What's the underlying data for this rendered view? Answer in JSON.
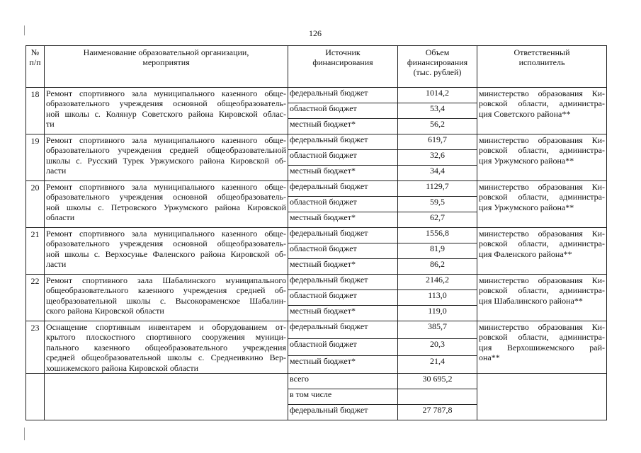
{
  "page_number": "126",
  "header": {
    "num": [
      "№",
      "п/п"
    ],
    "name": [
      "Наименование образовательной организации,",
      "мероприятия"
    ],
    "source": [
      "Источник",
      "финансирования"
    ],
    "volume": [
      "Объем",
      "финансирования",
      "(тыс. рублей)"
    ],
    "responsible": [
      "Ответственный",
      "исполнитель"
    ]
  },
  "rows": [
    {
      "num": "18",
      "name_lines": [
        "Ремонт спортивного зала муниципального казенного обще-",
        "образовательного учреждения основной общеобразователь-",
        "ной школы с. Колянур Советского района Кировской облас-",
        "ти"
      ],
      "funding": [
        {
          "source": "федеральный бюджет",
          "amount": "1014,2"
        },
        {
          "source": "областной бюджет",
          "amount": "53,4"
        },
        {
          "source": "местный бюджет*",
          "amount": "56,2"
        }
      ],
      "responsible_lines": [
        "министерство образования Ки-",
        "ровской области, администра-",
        "ция Советского района**"
      ]
    },
    {
      "num": "19",
      "name_lines": [
        "Ремонт спортивного зала муниципального казенного обще-",
        "образовательного учреждения средней общеобразовательной",
        "школы с. Русский Турек Уржумского района Кировской об-",
        "ласти"
      ],
      "funding": [
        {
          "source": "федеральный бюджет",
          "amount": "619,7"
        },
        {
          "source": "областной бюджет",
          "amount": "32,6"
        },
        {
          "source": "местный бюджет*",
          "amount": "34,4"
        }
      ],
      "responsible_lines": [
        "министерство образования Ки-",
        "ровской области, администра-",
        "ция Уржумского района**"
      ]
    },
    {
      "num": "20",
      "name_lines": [
        "Ремонт спортивного зала муниципального казенного обще-",
        "образовательного учреждения основной общеобразователь-",
        "ной школы с. Петровского Уржумского района Кировской",
        "области"
      ],
      "funding": [
        {
          "source": "федеральный бюджет",
          "amount": "1129,7"
        },
        {
          "source": "областной бюджет",
          "amount": "59,5"
        },
        {
          "source": "местный бюджет*",
          "amount": "62,7"
        }
      ],
      "responsible_lines": [
        "министерство образования Ки-",
        "ровской области, администра-",
        "ция Уржумского района**"
      ]
    },
    {
      "num": "21",
      "name_lines": [
        "Ремонт спортивного зала муниципального казенного обще-",
        "образовательного учреждения основной общеобразователь-",
        "ной школы с. Верхосунье Фаленского района Кировской об-",
        "ласти"
      ],
      "funding": [
        {
          "source": "федеральный бюджет",
          "amount": "1556,8"
        },
        {
          "source": "областной бюджет",
          "amount": "81,9"
        },
        {
          "source": "местный бюджет*",
          "amount": "86,2"
        }
      ],
      "responsible_lines": [
        "министерство образования Ки-",
        "ровской области, администра-",
        "ция Фаленского района**"
      ]
    },
    {
      "num": "22",
      "name_lines": [
        "Ремонт спортивного зала Шабалинского муниципального",
        "общеобразовательного казенного учреждения средней об-",
        "щеобразовательной школы с. Высокораменское Шабалин-",
        "ского района Кировской области"
      ],
      "funding": [
        {
          "source": "федеральный бюджет",
          "amount": "2146,2"
        },
        {
          "source": "областной бюджет",
          "amount": "113,0"
        },
        {
          "source": "местный бюджет*",
          "amount": "119,0"
        }
      ],
      "responsible_lines": [
        "министерство образования Ки-",
        "ровской области, администра-",
        "ция Шабалинского района**"
      ]
    },
    {
      "num": "23",
      "name_lines": [
        "Оснащение спортивным инвентарем и оборудованием от-",
        "крытого плоскостного спортивного сооружения муници-",
        "пального казенного общеобразовательного учреждения",
        "средней общеобразовательной школы с. Среднеивкино Вер-",
        "хошижемского района Кировской области"
      ],
      "funding": [
        {
          "source": "федеральный бюджет",
          "amount": "385,7"
        },
        {
          "source": "областной бюджет",
          "amount": "20,3"
        },
        {
          "source": "местный бюджет*",
          "amount": "21,4"
        }
      ],
      "responsible_lines": [
        "министерство образования Ки-",
        "ровской области, администра-",
        "ция Верхошижемского рай-",
        "она**"
      ]
    }
  ],
  "totals": [
    {
      "source": "всего",
      "amount": "30 695,2"
    },
    {
      "source": "в том числе",
      "amount": ""
    },
    {
      "source": "федеральный бюджет",
      "amount": "27 787,8"
    }
  ]
}
